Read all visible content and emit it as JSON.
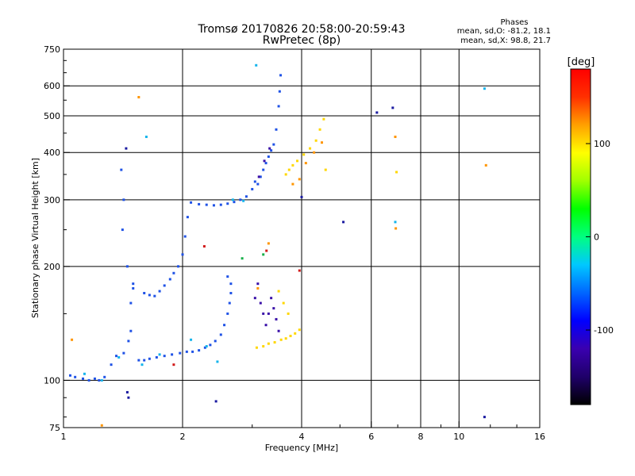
{
  "chart_data": {
    "type": "scatter",
    "title": "Tromsø 20170826 20:58:00-20:59:43",
    "subtitle": "RwPretec (8p)",
    "xlabel": "Frequency [MHz]",
    "ylabel": "Stationary phase Virtual Height [km]",
    "x_scale": "log",
    "y_scale": "log",
    "xlim": [
      1,
      16
    ],
    "ylim": [
      75,
      750
    ],
    "grid": true,
    "x_ticks": [
      1,
      2,
      4,
      6,
      8,
      10,
      16
    ],
    "y_ticks": [
      75,
      100,
      200,
      300,
      400,
      500,
      600,
      750
    ],
    "stats": {
      "heading": "Phases",
      "o_mode": "mean, sd,O:  -81.2, 18.1",
      "x_mode": "mean, sd,X:  98.8, 21.7"
    },
    "colorbar": {
      "label": "[deg]",
      "range": [
        -180,
        180
      ],
      "ticks": [
        100,
        0,
        -100
      ],
      "palette": [
        "#000000",
        "#1f006a",
        "#3a00b0",
        "#0000ff",
        "#0066ff",
        "#00c8ff",
        "#00ff80",
        "#00ff00",
        "#a0ff00",
        "#ffff00",
        "#ffa000",
        "#ff3000",
        "#ff0000"
      ]
    },
    "series": [
      {
        "color": "#1f52e6",
        "points": [
          [
            1.04,
            103
          ],
          [
            1.07,
            102
          ],
          [
            1.12,
            101
          ],
          [
            1.16,
            100
          ],
          [
            1.2,
            101
          ],
          [
            1.23,
            100
          ],
          [
            1.27,
            102
          ],
          [
            1.32,
            110
          ],
          [
            1.36,
            116
          ],
          [
            1.42,
            118
          ],
          [
            1.46,
            127
          ],
          [
            1.48,
            135
          ],
          [
            1.48,
            160
          ],
          [
            1.5,
            175
          ],
          [
            1.5,
            180
          ],
          [
            1.55,
            113
          ],
          [
            1.6,
            113
          ],
          [
            1.65,
            114
          ],
          [
            1.72,
            115
          ],
          [
            1.8,
            116
          ],
          [
            1.88,
            117
          ],
          [
            1.97,
            118
          ],
          [
            2.05,
            119
          ],
          [
            2.12,
            119
          ],
          [
            2.2,
            120
          ],
          [
            2.28,
            122
          ],
          [
            2.35,
            124
          ],
          [
            2.42,
            127
          ],
          [
            2.5,
            132
          ],
          [
            2.55,
            140
          ],
          [
            2.6,
            150
          ],
          [
            2.63,
            160
          ],
          [
            2.65,
            170
          ],
          [
            1.6,
            170
          ],
          [
            1.65,
            168
          ],
          [
            1.7,
            167
          ],
          [
            1.75,
            172
          ],
          [
            1.8,
            178
          ],
          [
            1.86,
            185
          ],
          [
            1.9,
            192
          ],
          [
            1.95,
            200
          ],
          [
            2.0,
            215
          ],
          [
            2.03,
            240
          ],
          [
            2.06,
            270
          ],
          [
            2.1,
            295
          ],
          [
            2.2,
            292
          ],
          [
            2.3,
            291
          ],
          [
            2.4,
            290
          ],
          [
            2.5,
            291
          ],
          [
            2.6,
            293
          ],
          [
            2.7,
            296
          ],
          [
            2.8,
            300
          ],
          [
            2.9,
            306
          ],
          [
            3.0,
            320
          ],
          [
            3.05,
            335
          ],
          [
            3.1,
            330
          ],
          [
            3.15,
            345
          ],
          [
            3.2,
            360
          ],
          [
            3.25,
            375
          ],
          [
            3.3,
            390
          ],
          [
            3.35,
            405
          ],
          [
            3.4,
            420
          ],
          [
            3.45,
            460
          ],
          [
            3.5,
            530
          ],
          [
            3.52,
            580
          ],
          [
            3.54,
            640
          ],
          [
            1.4,
            360
          ],
          [
            1.42,
            300
          ],
          [
            1.41,
            250
          ],
          [
            1.45,
            200
          ],
          [
            2.6,
            188
          ],
          [
            2.65,
            180
          ]
        ]
      },
      {
        "color": "#3a10a8",
        "points": [
          [
            3.05,
            165
          ],
          [
            3.1,
            180
          ],
          [
            3.15,
            160
          ],
          [
            3.2,
            150
          ],
          [
            3.25,
            140
          ],
          [
            3.3,
            150
          ],
          [
            3.35,
            165
          ],
          [
            3.4,
            155
          ],
          [
            3.45,
            145
          ],
          [
            3.5,
            135
          ],
          [
            3.12,
            345
          ],
          [
            3.22,
            380
          ],
          [
            3.32,
            410
          ]
        ]
      },
      {
        "color": "#14b4ec",
        "points": [
          [
            1.13,
            104
          ],
          [
            1.25,
            100
          ],
          [
            1.38,
            115
          ],
          [
            1.58,
            110
          ],
          [
            1.75,
            117
          ],
          [
            2.1,
            128
          ],
          [
            2.3,
            123
          ],
          [
            2.45,
            112
          ],
          [
            2.68,
            300
          ],
          [
            2.85,
            298
          ],
          [
            3.07,
            680
          ],
          [
            6.9,
            262
          ],
          [
            11.6,
            590
          ],
          [
            1.62,
            440
          ]
        ]
      },
      {
        "color": "#ffd700",
        "points": [
          [
            3.08,
            122
          ],
          [
            3.2,
            123
          ],
          [
            3.3,
            125
          ],
          [
            3.42,
            126
          ],
          [
            3.55,
            128
          ],
          [
            3.65,
            129
          ],
          [
            3.75,
            131
          ],
          [
            3.85,
            133
          ],
          [
            3.95,
            136
          ],
          [
            3.5,
            172
          ],
          [
            3.6,
            160
          ],
          [
            3.7,
            150
          ],
          [
            3.65,
            350
          ],
          [
            3.72,
            360
          ],
          [
            3.8,
            370
          ],
          [
            3.9,
            380
          ],
          [
            4.05,
            395
          ],
          [
            4.2,
            410
          ],
          [
            4.35,
            430
          ],
          [
            4.45,
            460
          ],
          [
            4.55,
            490
          ],
          [
            4.6,
            360
          ],
          [
            6.95,
            355
          ]
        ]
      },
      {
        "color": "#ff9500",
        "points": [
          [
            1.25,
            76
          ],
          [
            1.55,
            560
          ],
          [
            3.1,
            175
          ],
          [
            3.3,
            230
          ],
          [
            3.8,
            330
          ],
          [
            3.95,
            340
          ],
          [
            4.1,
            375
          ],
          [
            4.3,
            400
          ],
          [
            4.5,
            425
          ],
          [
            6.9,
            440
          ],
          [
            11.7,
            370
          ],
          [
            1.05,
            128
          ],
          [
            6.92,
            252
          ]
        ]
      },
      {
        "color": "#17b04a",
        "points": [
          [
            2.83,
            210
          ],
          [
            3.2,
            215
          ]
        ]
      },
      {
        "color": "#d11a1a",
        "points": [
          [
            1.9,
            110
          ],
          [
            2.27,
            226
          ],
          [
            3.26,
            220
          ],
          [
            3.95,
            195
          ]
        ]
      },
      {
        "color": "#1a1aa0",
        "points": [
          [
            1.45,
            93
          ],
          [
            1.46,
            90
          ],
          [
            1.44,
            410
          ],
          [
            2.43,
            88
          ],
          [
            4.0,
            305
          ],
          [
            5.1,
            262
          ],
          [
            6.2,
            510
          ],
          [
            6.8,
            525
          ],
          [
            11.6,
            80
          ]
        ]
      }
    ]
  }
}
